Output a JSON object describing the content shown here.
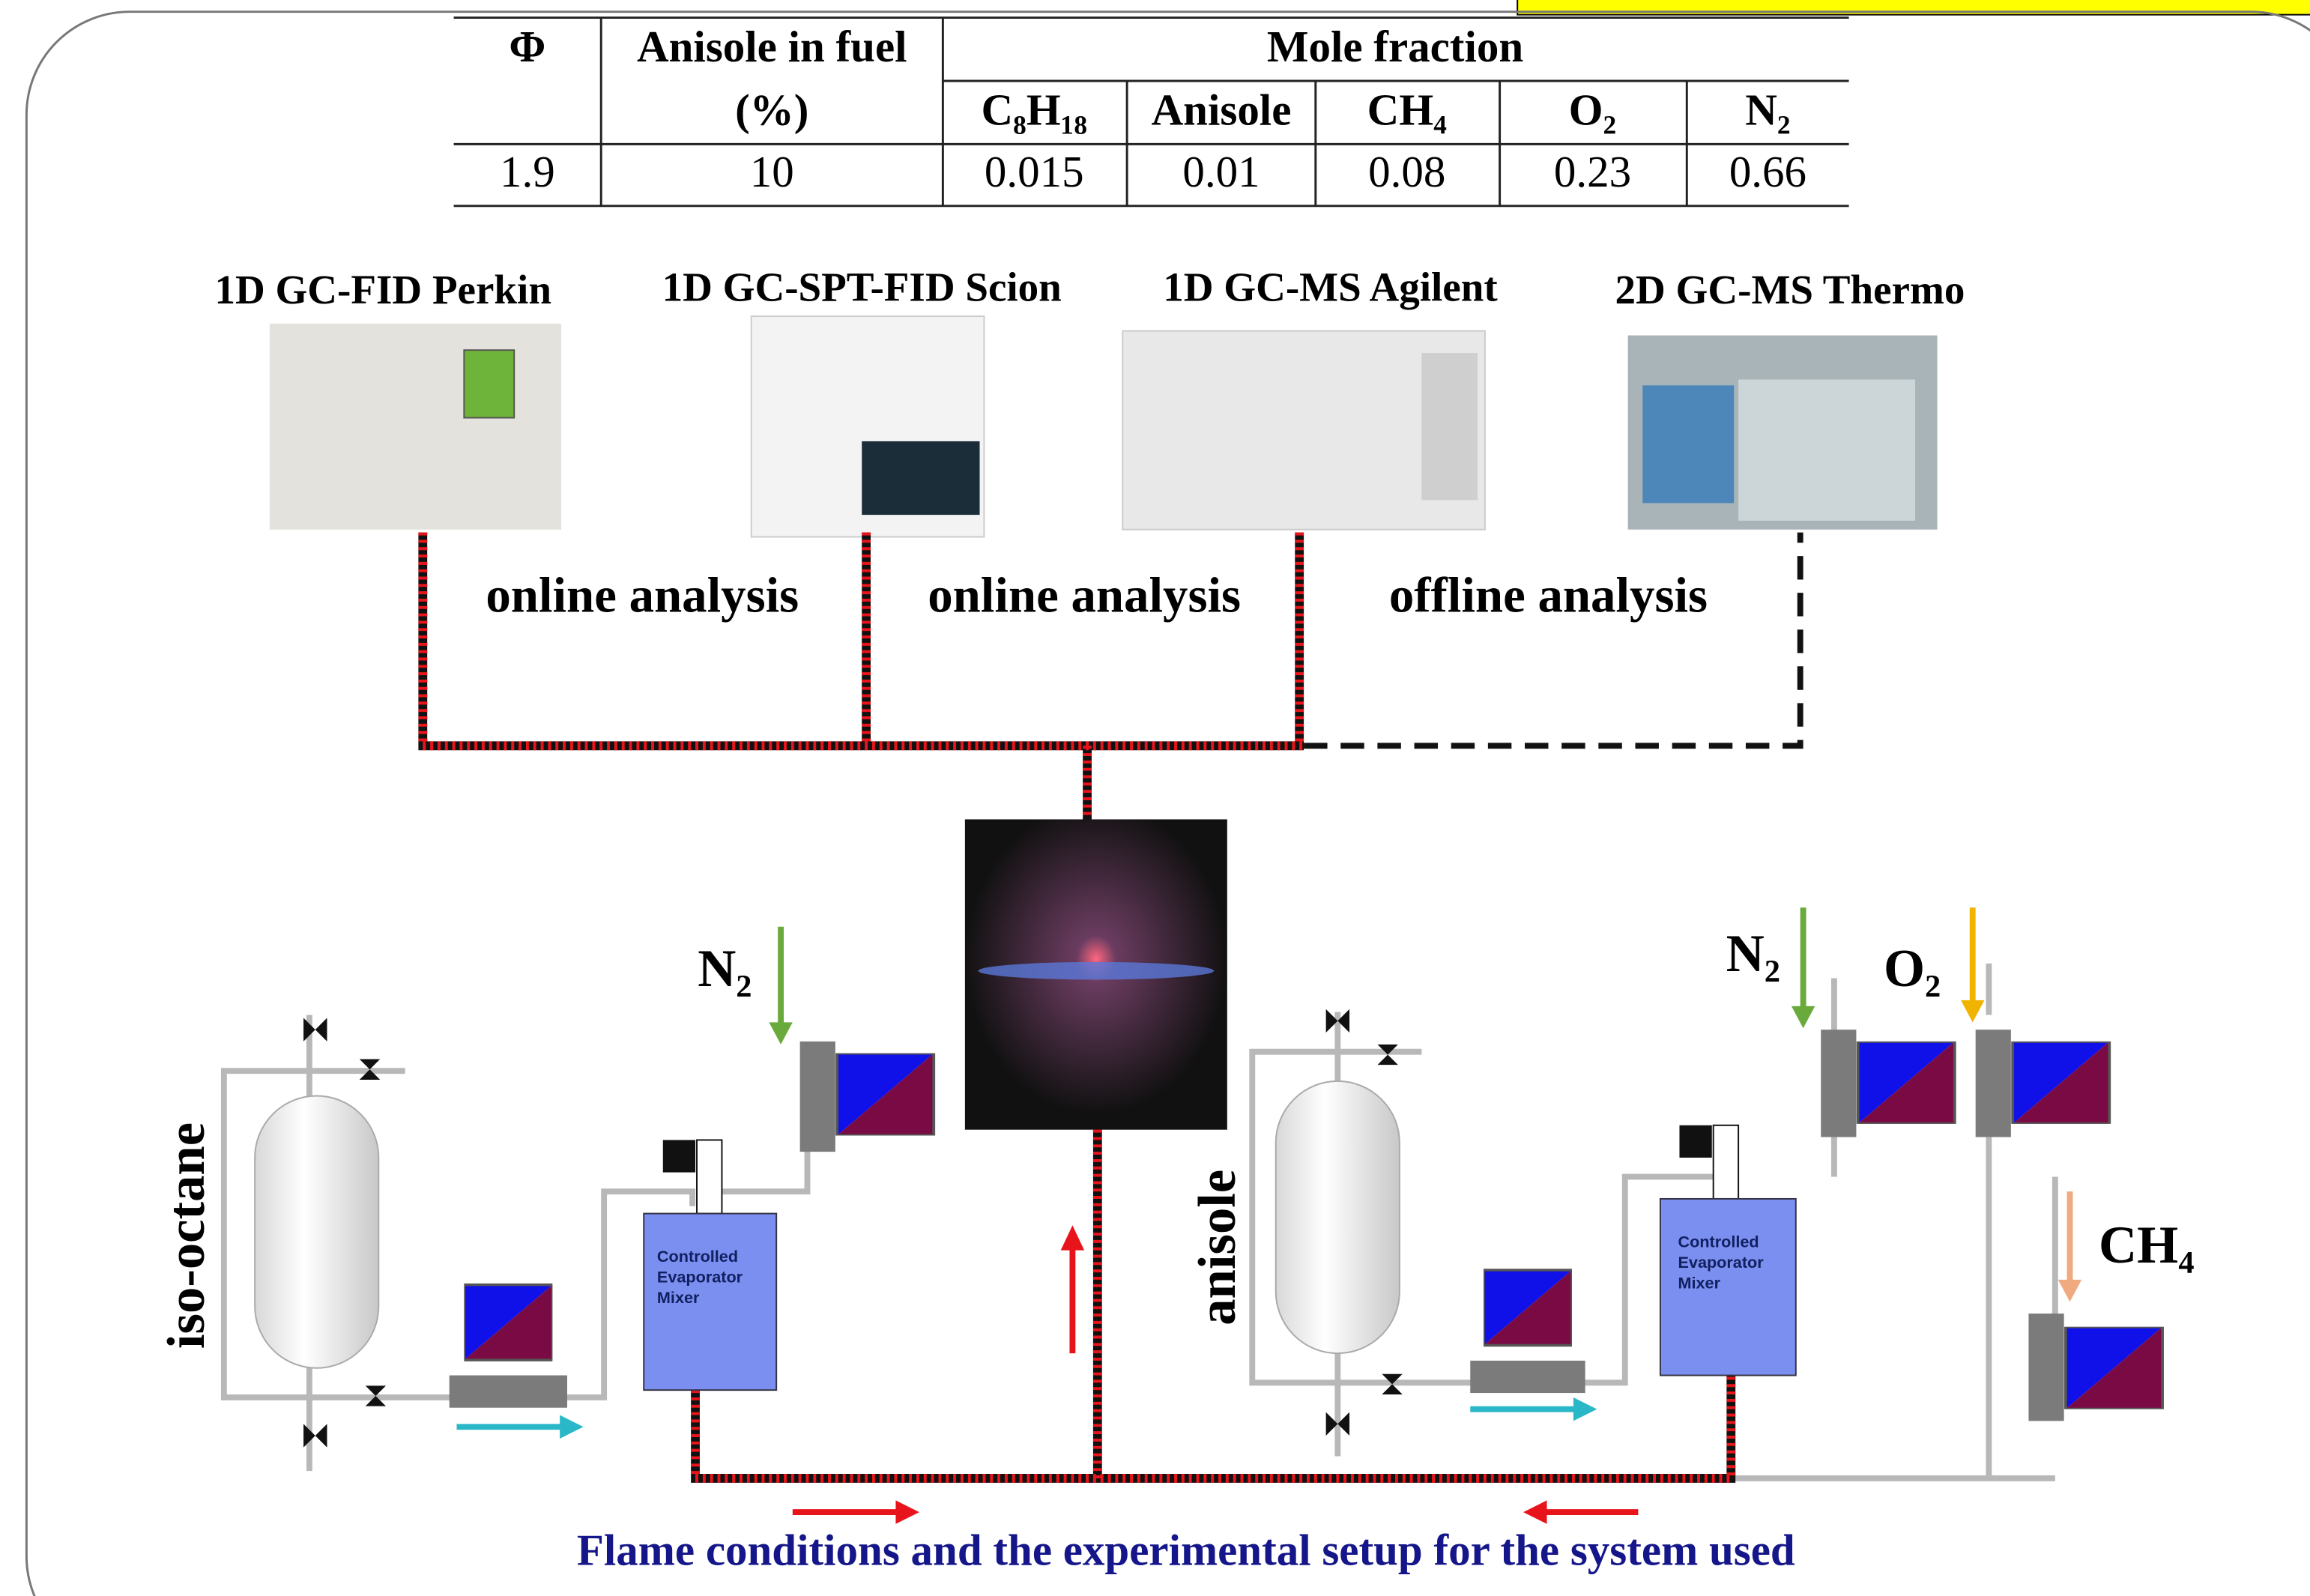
{
  "table": {
    "header_row1": [
      "Φ",
      "Anisole in fuel",
      "Mole fraction"
    ],
    "header_row2": [
      "(%)",
      "C₈H₁₈",
      "Anisole",
      "CH₄",
      "O₂",
      "N₂"
    ],
    "rows": [
      [
        1.9,
        10,
        0.015,
        0.01,
        0.08,
        0.23,
        0.66
      ]
    ]
  },
  "instruments": [
    "1D GC-FID Perkin",
    "1D GC-SPT-FID Scion",
    "1D GC-MS Agilent",
    "2D GC-MS Thermo"
  ],
  "analysis_labels": [
    "online analysis",
    "online analysis",
    "offline analysis"
  ],
  "fuels": [
    "iso-octane",
    "anisole"
  ],
  "gases": [
    "N₂",
    "N₂",
    "O₂",
    "CH₄"
  ],
  "mixers": [
    [
      "Controlled",
      "Evaporator",
      "Mixer"
    ],
    [
      "Controlled",
      "Evaporator",
      "Mixer"
    ]
  ],
  "caption": "Flame conditions and the experimental setup for the system used"
}
